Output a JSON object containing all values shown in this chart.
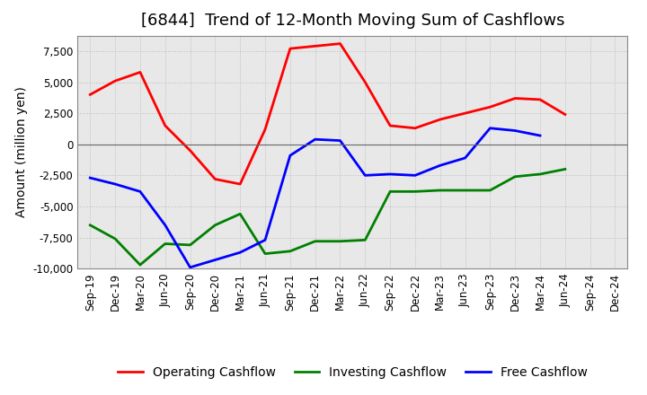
{
  "title": "[6844]  Trend of 12-Month Moving Sum of Cashflows",
  "ylabel": "Amount (million yen)",
  "ylim": [
    -10000,
    8750
  ],
  "yticks": [
    -10000,
    -7500,
    -5000,
    -2500,
    0,
    2500,
    5000,
    7500
  ],
  "plot_bg_color": "#e8e8e8",
  "fig_bg_color": "#ffffff",
  "grid_color": "#bbbbbb",
  "labels": [
    "Sep-19",
    "Dec-19",
    "Mar-20",
    "Jun-20",
    "Sep-20",
    "Dec-20",
    "Mar-21",
    "Jun-21",
    "Sep-21",
    "Dec-21",
    "Mar-22",
    "Jun-22",
    "Sep-22",
    "Dec-22",
    "Mar-23",
    "Jun-23",
    "Sep-23",
    "Dec-23",
    "Mar-24",
    "Jun-24",
    "Sep-24",
    "Dec-24"
  ],
  "operating": [
    4000,
    5100,
    5800,
    1500,
    -500,
    -2800,
    -3200,
    1200,
    7700,
    7900,
    8100,
    5000,
    1500,
    1300,
    2000,
    2500,
    3000,
    3700,
    3600,
    2400,
    null,
    null
  ],
  "investing": [
    -6500,
    -7600,
    -9700,
    -8000,
    -8100,
    -6500,
    -5600,
    -8800,
    -8600,
    -7800,
    -7800,
    -7700,
    -3800,
    -3800,
    -3700,
    -3700,
    -3700,
    -2600,
    -2400,
    -2000,
    null,
    null
  ],
  "free": [
    -2700,
    -3200,
    -3800,
    -6500,
    -9900,
    -9300,
    -8700,
    -7700,
    -900,
    400,
    300,
    -2500,
    -2400,
    -2500,
    -1700,
    -1100,
    1300,
    1100,
    700,
    null,
    null,
    null
  ],
  "op_color": "#ff0000",
  "inv_color": "#008000",
  "free_color": "#0000ff",
  "line_width": 2.0,
  "title_fontsize": 13,
  "label_fontsize": 10,
  "tick_fontsize": 8.5
}
